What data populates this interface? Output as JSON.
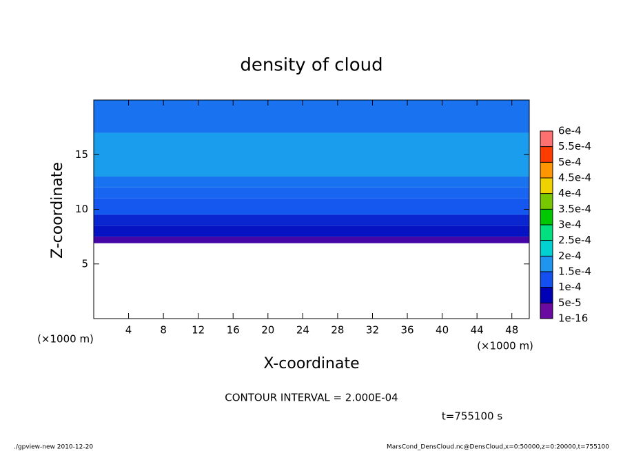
{
  "chart_data": {
    "type": "contour",
    "title": "density of cloud",
    "x_label": "X-coordinate",
    "y_label": "Z-coordinate",
    "x_unit": "(×1000 m)",
    "xlim": [
      0,
      50
    ],
    "ylim": [
      0,
      20
    ],
    "xticks": [
      4,
      8,
      12,
      16,
      20,
      24,
      28,
      32,
      36,
      40,
      44,
      48
    ],
    "yticks": [
      5,
      10,
      15
    ],
    "z_edges": [
      6.9,
      7.5,
      8.5,
      9.5,
      11,
      12,
      13,
      17,
      20
    ],
    "values": [
      3e-05,
      7e-05,
      9e-05,
      0.00011,
      0.000125,
      0.00014,
      0.00016,
      0.00014
    ],
    "colorbar": {
      "levels": [
        {
          "value": 1e-16,
          "label": "1e-16"
        },
        {
          "value": 5e-05,
          "label": "5e-5"
        },
        {
          "value": 0.0001,
          "label": "1e-4"
        },
        {
          "value": 0.00015,
          "label": "1.5e-4"
        },
        {
          "value": 0.0002,
          "label": "2e-4"
        },
        {
          "value": 0.00025,
          "label": "2.5e-4"
        },
        {
          "value": 0.0003,
          "label": "3e-4"
        },
        {
          "value": 0.00035,
          "label": "3.5e-4"
        },
        {
          "value": 0.0004,
          "label": "4e-4"
        },
        {
          "value": 0.00045,
          "label": "4.5e-4"
        },
        {
          "value": 0.0005,
          "label": "5e-4"
        },
        {
          "value": 0.00055,
          "label": "5.5e-4"
        },
        {
          "value": 0.0006,
          "label": "6e-4"
        }
      ],
      "colors": [
        "#6a0aa0",
        "#0000b4",
        "#1450f0",
        "#1e96f0",
        "#00d2d2",
        "#00e080",
        "#00c800",
        "#78c800",
        "#f0d200",
        "#ff9600",
        "#ff3c00",
        "#ff7070"
      ]
    },
    "annotations": {
      "contour_interval": "CONTOUR INTERVAL = 2.000E-04",
      "time": "t=755100 s"
    }
  },
  "footer": {
    "left": "./gpview-new  2010-12-20",
    "right": "MarsCond_DensCloud.nc@DensCloud,x=0:50000,z=0:20000,t=755100"
  }
}
